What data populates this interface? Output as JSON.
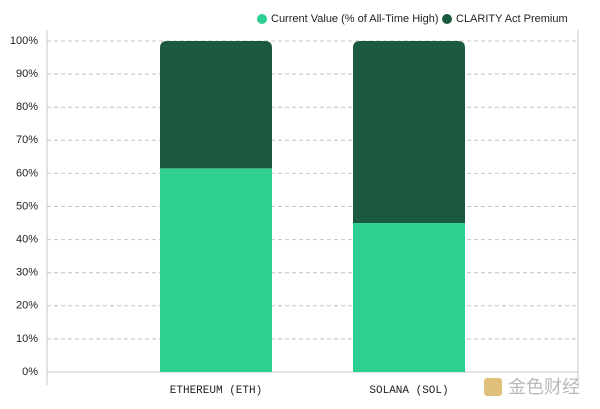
{
  "chart_data": {
    "type": "stacked_bar",
    "categories": [
      "ETHEREUM (ETH)",
      "SOLANA (SOL)"
    ],
    "series": [
      {
        "name": "Current Value (% of All-Time High)",
        "color": "#2ecf91",
        "values": [
          61.5,
          45
        ]
      },
      {
        "name": "CLARITY Act Premium",
        "color": "#1b5a3e",
        "values": [
          38.5,
          55
        ]
      }
    ],
    "ylim": [
      0,
      100
    ],
    "yticks": [
      {
        "value": 0,
        "label": "0%"
      },
      {
        "value": 10,
        "label": "10%"
      },
      {
        "value": 20,
        "label": "20%"
      },
      {
        "value": 30,
        "label": "30%"
      },
      {
        "value": 40,
        "label": "40%"
      },
      {
        "value": 50,
        "label": "50%"
      },
      {
        "value": 60,
        "label": "60%"
      },
      {
        "value": 70,
        "label": "70%"
      },
      {
        "value": 80,
        "label": "80%"
      },
      {
        "value": 90,
        "label": "90%"
      },
      {
        "value": 100,
        "label": "100%"
      }
    ],
    "grid": true,
    "legend": "top-right"
  },
  "watermark": "金色财经"
}
